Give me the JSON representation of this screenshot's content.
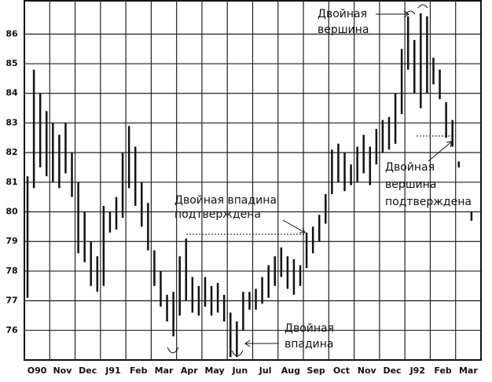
{
  "chart_data": {
    "type": "range-bar",
    "categories": [
      "O90",
      null,
      null,
      null,
      "Nov",
      null,
      null,
      null,
      "Dec",
      null,
      null,
      null,
      "J91",
      null,
      null,
      null,
      "Feb",
      null,
      null,
      null,
      "Mar",
      null,
      null,
      null,
      "Apr",
      null,
      null,
      null,
      "May",
      null,
      null,
      null,
      "Jun",
      null,
      null,
      null,
      "Jul",
      null,
      null,
      null,
      "Aug",
      null,
      null,
      null,
      "Sep",
      null,
      null,
      null,
      "Oct",
      null,
      null,
      null,
      "Nov",
      null,
      null,
      null,
      "Dec",
      null,
      null,
      null,
      "J92",
      null,
      null,
      null,
      "Feb",
      null,
      null,
      null,
      "Mar",
      null,
      null,
      null
    ],
    "high": [
      81.2,
      84.8,
      84,
      83.4,
      83,
      82.6,
      83,
      82,
      81,
      80,
      79,
      78.5,
      80.2,
      80,
      80.5,
      82,
      82.9,
      82.2,
      81,
      80.3,
      78.7,
      78,
      77.2,
      77.3,
      78.5,
      79.1,
      77.8,
      77.5,
      77.8,
      77.5,
      77.6,
      77.2,
      76.6,
      76.3,
      77.3,
      77.3,
      77.4,
      77.8,
      78.2,
      78.5,
      78.8,
      78.5,
      78.4,
      78.2,
      79.3,
      79.5,
      79.9,
      80.6,
      82.1,
      82.3,
      82,
      81.6,
      82.2,
      82.6,
      82.2,
      82.8,
      83.1,
      83.2,
      84,
      85.5,
      86.6,
      85.8,
      86.7,
      86.6,
      85.2,
      84.8,
      83.7,
      83.1,
      81.7,
      null,
      80,
      null
    ],
    "low": [
      77.1,
      80.8,
      81.5,
      81.2,
      81,
      80.8,
      81.3,
      80.5,
      78.6,
      78.3,
      77.5,
      77.3,
      77.5,
      79.3,
      79.4,
      79.8,
      80.8,
      80.2,
      79.5,
      78.7,
      77.5,
      76.8,
      76.3,
      75.8,
      76.5,
      77,
      76.6,
      76.5,
      76.8,
      76.5,
      76.6,
      76.3,
      75.1,
      75.1,
      76,
      76.7,
      76.7,
      76.9,
      77.1,
      77.5,
      77.8,
      77.4,
      77.2,
      77.5,
      78.1,
      78.6,
      79,
      79.6,
      80.6,
      81,
      80.7,
      80.9,
      81,
      81.3,
      80.9,
      81.6,
      82,
      82.1,
      82.3,
      83.3,
      84.8,
      84,
      83.5,
      84,
      84.3,
      83.8,
      82.5,
      82.2,
      81.5,
      null,
      79.7,
      null
    ],
    "color": "#111111",
    "ylim": [
      75,
      87.15
    ],
    "yticks": [
      76,
      77,
      78,
      79,
      80,
      81,
      82,
      83,
      84,
      85,
      86
    ],
    "grid": true,
    "annotations": [
      "Двойная",
      "вершина",
      "Двойная",
      "вершина",
      "подтверждена",
      "Двойная впадина",
      "подтверждена",
      "Двойная",
      "впадина"
    ]
  }
}
